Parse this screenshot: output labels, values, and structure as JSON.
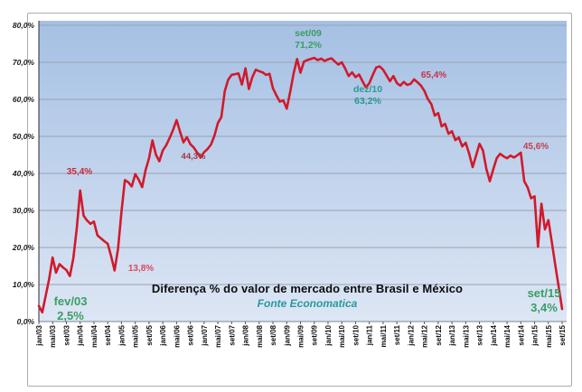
{
  "chart_data": {
    "type": "line",
    "title": "Diferença % do valor de mercado entre Brasil e México",
    "subtitle": "Fonte Economatica",
    "x_unit": "month",
    "x_range": [
      "jan/03",
      "set/15"
    ],
    "x_tick_labels": [
      "jan/03",
      "mai/03",
      "set/03",
      "jan/04",
      "mai/04",
      "set/04",
      "jan/05",
      "mai/05",
      "set/05",
      "jan/06",
      "mai/06",
      "set/06",
      "jan/07",
      "mai/07",
      "set/07",
      "jan/08",
      "mai/08",
      "set/08",
      "jan/09",
      "mai/09",
      "set/09",
      "jan/10",
      "mai/10",
      "set/10",
      "jan/11",
      "mai/11",
      "set/11",
      "jan/12",
      "mai/12",
      "set/12",
      "jan/13",
      "mai/13",
      "set/13",
      "jan/14",
      "mai/14",
      "set/14",
      "jan/15",
      "mai/15",
      "set/15"
    ],
    "y_tick_labels": [
      "0,0%",
      "10,0%",
      "20,0%",
      "30,0%",
      "40,0%",
      "50,0%",
      "60,0%",
      "70,0%",
      "80,0%"
    ],
    "ylim": [
      0,
      80
    ],
    "grid": true,
    "line_color": "#d01a2b",
    "plot_bg_gradient": [
      "#a5c0e4",
      "#dde6f4"
    ],
    "values": [
      4.2,
      2.5,
      7.0,
      11.5,
      17.3,
      13.2,
      15.5,
      14.6,
      13.9,
      12.3,
      17.0,
      25.0,
      35.4,
      28.6,
      27.3,
      26.4,
      27.0,
      23.3,
      22.5,
      21.7,
      21.0,
      17.6,
      13.8,
      19.6,
      29.6,
      38.2,
      37.6,
      36.5,
      39.8,
      38.3,
      36.3,
      40.9,
      44.1,
      48.9,
      45.1,
      43.3,
      46.2,
      47.6,
      49.6,
      51.8,
      54.4,
      51.3,
      48.4,
      49.8,
      47.9,
      47.0,
      45.6,
      44.3,
      45.7,
      46.6,
      47.8,
      50.2,
      53.6,
      55.2,
      62.2,
      65.3,
      66.6,
      66.8,
      67.0,
      64.0,
      68.4,
      62.8,
      66.0,
      68.0,
      67.6,
      67.3,
      66.6,
      66.9,
      63.0,
      61.1,
      59.4,
      59.7,
      57.5,
      62.0,
      67.0,
      70.9,
      67.2,
      70.2,
      70.6,
      70.9,
      71.2,
      70.6,
      71.0,
      70.4,
      70.8,
      71.1,
      70.2,
      69.4,
      70.0,
      68.3,
      66.3,
      67.3,
      66.0,
      66.7,
      64.9,
      63.2,
      64.4,
      66.6,
      68.6,
      68.9,
      68.0,
      66.5,
      64.9,
      66.3,
      64.4,
      63.7,
      64.7,
      63.9,
      64.2,
      65.4,
      64.6,
      63.7,
      62.3,
      60.1,
      58.7,
      55.6,
      56.3,
      52.7,
      53.4,
      50.7,
      51.4,
      49.0,
      49.7,
      47.3,
      48.3,
      45.3,
      41.7,
      44.8,
      48.0,
      46.2,
      41.2,
      37.9,
      41.1,
      44.1,
      45.3,
      44.6,
      44.1,
      44.8,
      44.3,
      44.9,
      45.6,
      37.9,
      36.2,
      33.3,
      33.8,
      20.2,
      31.8,
      24.9,
      27.4,
      21.5,
      15.3,
      9.4,
      3.4
    ],
    "annotations": [
      {
        "id": "fev03",
        "lines": [
          "fev/03",
          "2,5%"
        ],
        "color": "#3a9e63"
      },
      {
        "id": "max04",
        "lines": [
          "35,4%"
        ],
        "color": "#cf2738"
      },
      {
        "id": "min04",
        "lines": [
          "13,8%"
        ],
        "color": "#d84a5e"
      },
      {
        "id": "min06",
        "lines": [
          "44,3%"
        ],
        "color": "#a23844"
      },
      {
        "id": "set09",
        "lines": [
          "set/09",
          "71,2%"
        ],
        "color": "#3a9e63"
      },
      {
        "id": "dez10",
        "lines": [
          "dez/10",
          "63,2%"
        ],
        "color": "#2a9a8f"
      },
      {
        "id": "max12",
        "lines": [
          "65,4%"
        ],
        "color": "#c5334a"
      },
      {
        "id": "max14",
        "lines": [
          "45,6%"
        ],
        "color": "#c23f51"
      },
      {
        "id": "set15",
        "lines": [
          "set/15",
          "3,4%"
        ],
        "color": "#3a9e63"
      }
    ]
  }
}
